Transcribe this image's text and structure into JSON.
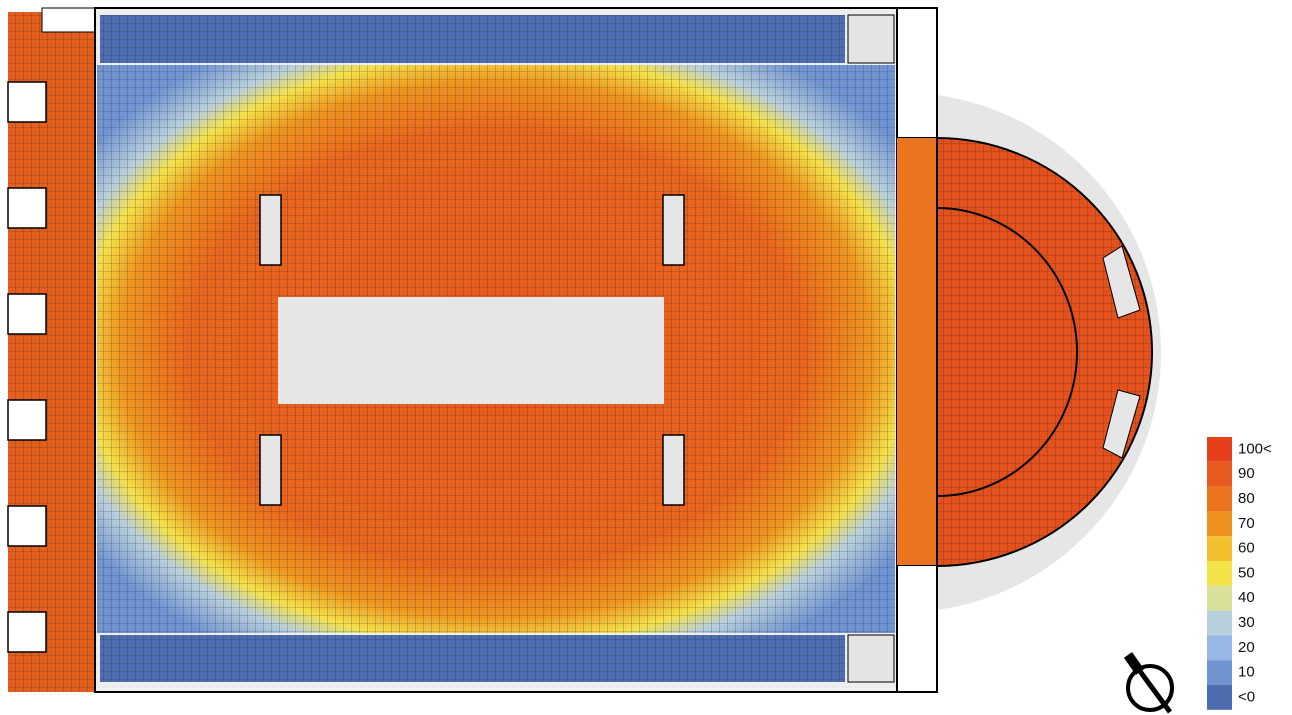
{
  "legend": {
    "items": [
      {
        "label": "100<",
        "color": "#e63f1b"
      },
      {
        "label": "90",
        "color": "#e85a1e"
      },
      {
        "label": "80",
        "color": "#ea741f"
      },
      {
        "label": "70",
        "color": "#ee911f"
      },
      {
        "label": "60",
        "color": "#f3bf2e"
      },
      {
        "label": "50",
        "color": "#f4e24b"
      },
      {
        "label": "40",
        "color": "#d8e09a"
      },
      {
        "label": "30",
        "color": "#b8cfdc"
      },
      {
        "label": "20",
        "color": "#98b6e6"
      },
      {
        "label": "10",
        "color": "#7094d2"
      },
      {
        "label": "<0",
        "color": "#4c6daf"
      }
    ]
  }
}
